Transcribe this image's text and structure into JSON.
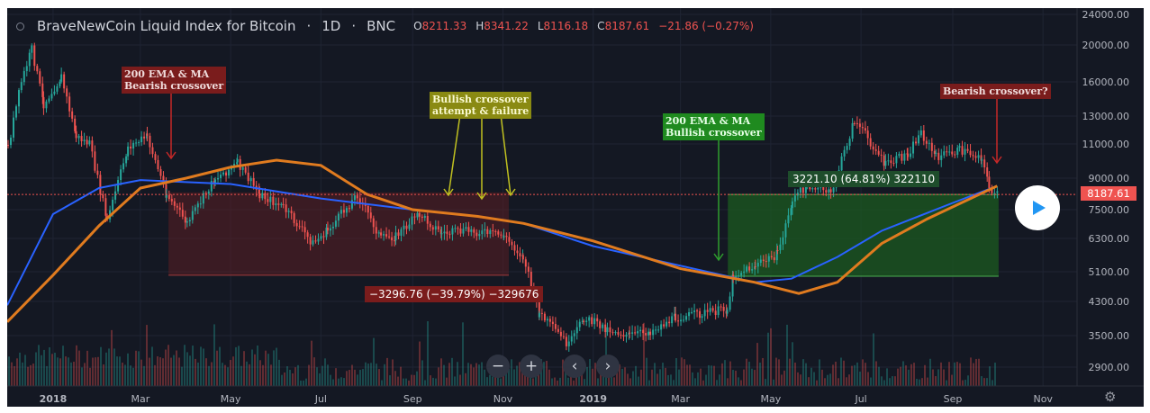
{
  "header": {
    "symbol": "BraveNewCoin Liquid Index for Bitcoin",
    "interval": "1D",
    "exchange": "BNC",
    "open_label": "O",
    "open": "8211.33",
    "high_label": "H",
    "high": "8341.22",
    "low_label": "L",
    "low": "8116.18",
    "close_label": "C",
    "close": "8187.61",
    "change": "−21.86 (−0.27%)"
  },
  "last_price": "8187.61",
  "annotations": {
    "bear1": [
      "200 EMA & MA",
      "Bearish crossover"
    ],
    "bullfail": [
      "Bullish crossover",
      "attempt & failure"
    ],
    "bull": [
      "200 EMA & MA",
      "Bullish crossover"
    ],
    "bear2": [
      "Bearish crossover?"
    ],
    "measure_down": "−3296.76 (−39.79%) −329676",
    "measure_up": "3221.10 (64.81%) 322110"
  },
  "controls": {
    "zoom_out": "−",
    "zoom_in": "+",
    "back": "‹",
    "forward": "›"
  },
  "colors": {
    "background": "#141823",
    "up": "#26a69a",
    "down": "#ef5350",
    "ema": "#2962ff",
    "ma": "#e07b1f",
    "bull_zone": "#1b5e20",
    "bear_zone": "#5a1f24"
  },
  "chart_data": {
    "type": "line",
    "title": "BraveNewCoin Liquid Index for Bitcoin",
    "scale": "log",
    "ylim": [
      2600,
      24000
    ],
    "y_ticks": [
      24000,
      20000,
      16000,
      13000,
      11000,
      9000,
      7500,
      6300,
      5100,
      4300,
      3500,
      2900
    ],
    "y_tick_labels": [
      "24000.00",
      "20000.00",
      "16000.00",
      "13000.00",
      "11000.00",
      "9000.00",
      "7500.00",
      "6300.00",
      "5100.00",
      "4300.00",
      "3500.00",
      "2900.00"
    ],
    "x_tick_labels": [
      "2018",
      "Mar",
      "May",
      "Jul",
      "Sep",
      "Nov",
      "2019",
      "Mar",
      "May",
      "Jul",
      "Sep",
      "Nov"
    ],
    "x_tick_dates": [
      "2018-01-01",
      "2018-03-01",
      "2018-05-01",
      "2018-07-01",
      "2018-09-01",
      "2018-11-01",
      "2019-01-01",
      "2019-03-01",
      "2019-05-01",
      "2019-07-01",
      "2019-09-01",
      "2019-11-01"
    ],
    "xlim": [
      "2017-12-01",
      "2019-11-24"
    ],
    "series": [
      {
        "kind": "price",
        "x": [
          "2017-12-01",
          "2017-12-10",
          "2017-12-17",
          "2017-12-25",
          "2018-01-06",
          "2018-01-16",
          "2018-01-25",
          "2018-02-06",
          "2018-02-20",
          "2018-03-05",
          "2018-03-18",
          "2018-04-01",
          "2018-04-20",
          "2018-05-05",
          "2018-05-20",
          "2018-06-05",
          "2018-06-25",
          "2018-07-05",
          "2018-07-25",
          "2018-08-10",
          "2018-08-20",
          "2018-09-05",
          "2018-09-20",
          "2018-10-10",
          "2018-11-01",
          "2018-11-14",
          "2018-11-25",
          "2018-12-15",
          "2018-12-25",
          "2019-01-10",
          "2019-01-25",
          "2019-02-08",
          "2019-02-25",
          "2019-03-15",
          "2019-04-01",
          "2019-04-05",
          "2019-04-20",
          "2019-05-05",
          "2019-05-15",
          "2019-05-25",
          "2019-06-10",
          "2019-06-26",
          "2019-07-05",
          "2019-07-17",
          "2019-08-01",
          "2019-08-10",
          "2019-08-20",
          "2019-09-05",
          "2019-09-20",
          "2019-09-25",
          "2019-10-01"
        ],
        "y": [
          10800,
          16000,
          19500,
          14000,
          16500,
          11500,
          11000,
          7000,
          10800,
          11500,
          8200,
          6900,
          9000,
          9800,
          8200,
          7600,
          6100,
          6600,
          8200,
          6300,
          6400,
          7300,
          6500,
          6600,
          6400,
          5600,
          4000,
          3300,
          3900,
          3650,
          3500,
          3600,
          3900,
          4000,
          4100,
          5000,
          5300,
          5700,
          7900,
          8700,
          8200,
          12700,
          11400,
          9700,
          10400,
          11800,
          10200,
          10600,
          10200,
          8500,
          8200
        ]
      },
      {
        "kind": "ema200",
        "x": [
          "2017-12-01",
          "2018-01-01",
          "2018-02-01",
          "2018-03-01",
          "2018-05-01",
          "2018-07-01",
          "2018-09-01",
          "2018-10-15",
          "2018-11-15",
          "2019-01-01",
          "2019-03-01",
          "2019-04-20",
          "2019-05-15",
          "2019-06-15",
          "2019-07-15",
          "2019-09-01",
          "2019-10-01"
        ],
        "y": [
          4200,
          7300,
          8500,
          8900,
          8700,
          8000,
          7500,
          7200,
          6900,
          6000,
          5300,
          4800,
          4900,
          5600,
          6600,
          7800,
          8600
        ]
      },
      {
        "kind": "ma200",
        "x": [
          "2017-12-01",
          "2018-01-01",
          "2018-02-01",
          "2018-03-01",
          "2018-04-01",
          "2018-05-01",
          "2018-06-01",
          "2018-07-01",
          "2018-08-01",
          "2018-09-01",
          "2018-10-15",
          "2018-11-15",
          "2019-01-01",
          "2019-03-01",
          "2019-04-20",
          "2019-05-20",
          "2019-06-15",
          "2019-07-15",
          "2019-08-15",
          "2019-10-01"
        ],
        "y": [
          3800,
          5000,
          6800,
          8500,
          9000,
          9600,
          10000,
          9700,
          8200,
          7500,
          7200,
          6900,
          6200,
          5200,
          4800,
          4500,
          4800,
          6100,
          7100,
          8600
        ]
      }
    ],
    "bear_zone": {
      "x": [
        "2018-03-20",
        "2018-11-05"
      ],
      "y": [
        5000,
        8287
      ]
    },
    "bull_zone": {
      "x": [
        "2019-04-02",
        "2019-10-02"
      ],
      "y": [
        4970,
        8190
      ]
    }
  }
}
